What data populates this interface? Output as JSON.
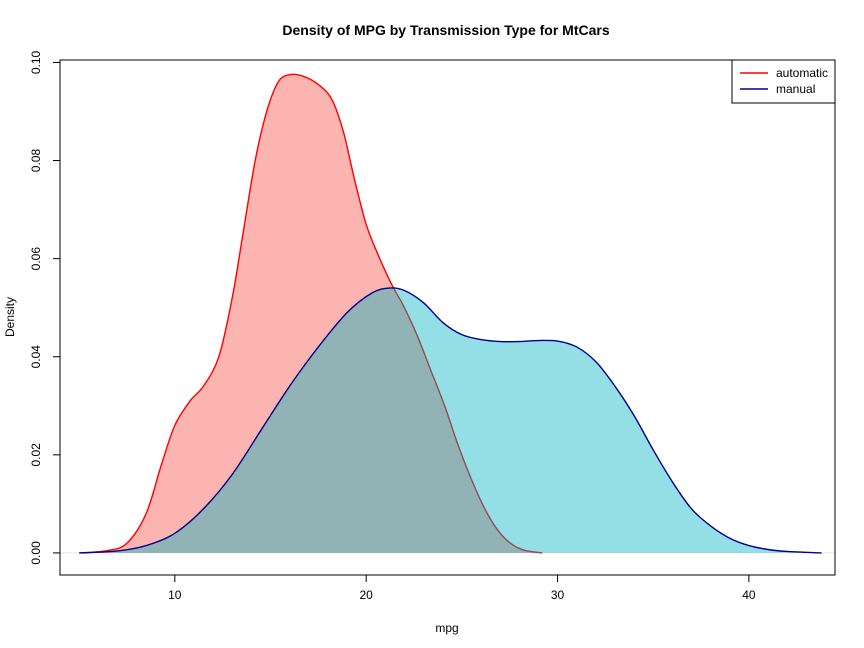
{
  "chart_data": {
    "type": "area",
    "title": "Density of MPG by Transmission Type for MtCars",
    "xlabel": "mpg",
    "ylabel": "Density",
    "xlim": [
      4,
      44.5
    ],
    "ylim": [
      -0.0045,
      0.1005
    ],
    "x_ticks": [
      10,
      20,
      30,
      40
    ],
    "y_ticks": [
      0.0,
      0.02,
      0.04,
      0.06,
      0.08,
      0.1
    ],
    "y_tick_labels": [
      "0.00",
      "0.02",
      "0.04",
      "0.06",
      "0.08",
      "0.10"
    ],
    "legend_position": "top-right",
    "series": [
      {
        "name": "automatic",
        "line_color": "#ff0000",
        "fill_color": "#f8766d",
        "fill_opacity": 0.55,
        "points": [
          [
            5.2,
            0.0
          ],
          [
            6.5,
            0.0005
          ],
          [
            7.5,
            0.002
          ],
          [
            8.5,
            0.008
          ],
          [
            9.3,
            0.018
          ],
          [
            10.0,
            0.026
          ],
          [
            10.8,
            0.031
          ],
          [
            11.5,
            0.034
          ],
          [
            12.3,
            0.04
          ],
          [
            13.0,
            0.052
          ],
          [
            13.6,
            0.066
          ],
          [
            14.2,
            0.08
          ],
          [
            14.8,
            0.09
          ],
          [
            15.4,
            0.096
          ],
          [
            16.0,
            0.0975
          ],
          [
            16.7,
            0.0972
          ],
          [
            17.5,
            0.0955
          ],
          [
            18.2,
            0.0925
          ],
          [
            18.8,
            0.086
          ],
          [
            19.4,
            0.076
          ],
          [
            20.0,
            0.067
          ],
          [
            20.6,
            0.061
          ],
          [
            21.3,
            0.055
          ],
          [
            22.0,
            0.05
          ],
          [
            22.7,
            0.044
          ],
          [
            23.4,
            0.037
          ],
          [
            24.1,
            0.03
          ],
          [
            24.8,
            0.022
          ],
          [
            25.5,
            0.015
          ],
          [
            26.2,
            0.009
          ],
          [
            26.9,
            0.0045
          ],
          [
            27.6,
            0.0018
          ],
          [
            28.3,
            0.0005
          ],
          [
            29.2,
            0.0
          ]
        ]
      },
      {
        "name": "manual",
        "line_color": "#00008b",
        "fill_color": "#00b2c0",
        "fill_opacity": 0.42,
        "points": [
          [
            5.0,
            0.0
          ],
          [
            7.0,
            0.0004
          ],
          [
            8.5,
            0.0015
          ],
          [
            10.0,
            0.004
          ],
          [
            11.5,
            0.009
          ],
          [
            13.0,
            0.016
          ],
          [
            14.5,
            0.025
          ],
          [
            16.0,
            0.034
          ],
          [
            17.5,
            0.042
          ],
          [
            19.0,
            0.049
          ],
          [
            20.3,
            0.053
          ],
          [
            21.2,
            0.054
          ],
          [
            22.0,
            0.0535
          ],
          [
            23.0,
            0.051
          ],
          [
            24.0,
            0.047
          ],
          [
            25.0,
            0.0445
          ],
          [
            26.0,
            0.0435
          ],
          [
            27.0,
            0.0431
          ],
          [
            28.0,
            0.0431
          ],
          [
            29.0,
            0.0433
          ],
          [
            30.0,
            0.0432
          ],
          [
            31.0,
            0.042
          ],
          [
            32.0,
            0.039
          ],
          [
            33.0,
            0.034
          ],
          [
            34.0,
            0.028
          ],
          [
            35.0,
            0.021
          ],
          [
            36.0,
            0.0145
          ],
          [
            37.0,
            0.009
          ],
          [
            38.0,
            0.0055
          ],
          [
            39.0,
            0.003
          ],
          [
            40.0,
            0.0015
          ],
          [
            41.0,
            0.0007
          ],
          [
            42.0,
            0.0003
          ],
          [
            43.8,
            0.0
          ]
        ]
      }
    ]
  }
}
